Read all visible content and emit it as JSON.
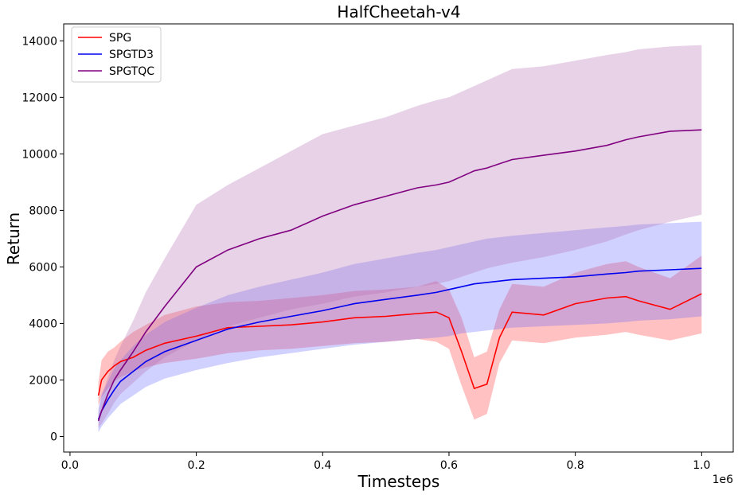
{
  "chart_data": {
    "type": "line",
    "title": "HalfCheetah-v4",
    "xlabel": "Timesteps",
    "ylabel": "Return",
    "x_offset_label": "1e6",
    "xlim": [
      -0.01,
      1.05
    ],
    "ylim": [
      -550,
      14600
    ],
    "xticks": [
      0.0,
      0.2,
      0.4,
      0.6,
      0.8,
      1.0
    ],
    "xtick_labels": [
      "0.0",
      "0.2",
      "0.4",
      "0.6",
      "0.8",
      "1.0"
    ],
    "yticks": [
      0,
      2000,
      4000,
      6000,
      8000,
      10000,
      12000,
      14000
    ],
    "ytick_labels": [
      "0",
      "2000",
      "4000",
      "6000",
      "8000",
      "10000",
      "12000",
      "14000"
    ],
    "grid": false,
    "legend_position": "top-left",
    "x": [
      0.045,
      0.05,
      0.06,
      0.07,
      0.08,
      0.1,
      0.12,
      0.15,
      0.2,
      0.25,
      0.3,
      0.35,
      0.4,
      0.45,
      0.5,
      0.55,
      0.58,
      0.6,
      0.62,
      0.64,
      0.66,
      0.68,
      0.7,
      0.75,
      0.8,
      0.85,
      0.88,
      0.9,
      0.95,
      1.0
    ],
    "series": [
      {
        "name": "SPG",
        "color": "#ff0000",
        "fill_color": "#ff3333",
        "values": [
          1450,
          2000,
          2300,
          2500,
          2650,
          2800,
          3050,
          3300,
          3550,
          3850,
          3900,
          3950,
          4050,
          4200,
          4250,
          4350,
          4400,
          4200,
          3000,
          1700,
          1850,
          3500,
          4400,
          4300,
          4700,
          4900,
          4950,
          4800,
          4500,
          5050
        ],
        "lower": [
          1100,
          1400,
          1700,
          1950,
          2100,
          2300,
          2450,
          2600,
          2750,
          2950,
          3050,
          3100,
          3200,
          3300,
          3350,
          3450,
          3350,
          3100,
          1800,
          600,
          800,
          2600,
          3400,
          3300,
          3500,
          3600,
          3700,
          3600,
          3400,
          3650
        ],
        "upper": [
          1900,
          2700,
          3000,
          3150,
          3350,
          3700,
          3950,
          4300,
          4600,
          4750,
          4800,
          4900,
          5000,
          5150,
          5200,
          5300,
          5500,
          5200,
          4200,
          2800,
          3000,
          4500,
          5400,
          5300,
          5800,
          6100,
          6200,
          6000,
          5600,
          6400
        ]
      },
      {
        "name": "SPGTD3",
        "color": "#0000ee",
        "fill_color": "#6666ff",
        "values": [
          600,
          900,
          1300,
          1650,
          1950,
          2300,
          2650,
          3000,
          3400,
          3800,
          4050,
          4250,
          4450,
          4700,
          4850,
          5000,
          5100,
          5200,
          5300,
          5400,
          5450,
          5500,
          5550,
          5600,
          5650,
          5750,
          5800,
          5850,
          5900,
          5950
        ],
        "lower": [
          150,
          350,
          650,
          900,
          1150,
          1450,
          1750,
          2050,
          2350,
          2600,
          2800,
          2950,
          3100,
          3250,
          3350,
          3450,
          3500,
          3550,
          3650,
          3700,
          3750,
          3800,
          3850,
          3900,
          3950,
          4000,
          4050,
          4100,
          4150,
          4250
        ],
        "upper": [
          1000,
          1500,
          1950,
          2400,
          2700,
          3200,
          3600,
          4050,
          4550,
          5000,
          5300,
          5550,
          5800,
          6100,
          6300,
          6500,
          6600,
          6700,
          6800,
          6900,
          7000,
          7050,
          7100,
          7200,
          7300,
          7400,
          7450,
          7500,
          7550,
          7600
        ]
      },
      {
        "name": "SPGTQC",
        "color": "#800080",
        "fill_color": "#b06ab0",
        "values": [
          550,
          900,
          1500,
          2000,
          2350,
          3000,
          3700,
          4600,
          6000,
          6600,
          7000,
          7300,
          7800,
          8200,
          8500,
          8800,
          8900,
          9000,
          9200,
          9400,
          9500,
          9650,
          9800,
          9950,
          10100,
          10300,
          10500,
          10600,
          10800,
          10850
        ],
        "lower": [
          300,
          450,
          800,
          1200,
          1500,
          1900,
          2300,
          2800,
          3400,
          3900,
          4200,
          4500,
          4700,
          4950,
          5100,
          5300,
          5400,
          5500,
          5650,
          5800,
          5950,
          6050,
          6150,
          6350,
          6600,
          6900,
          7150,
          7300,
          7600,
          7850
        ],
        "upper": [
          850,
          1400,
          2100,
          2700,
          3200,
          4100,
          5100,
          6300,
          8200,
          8900,
          9500,
          10100,
          10700,
          11000,
          11300,
          11700,
          11900,
          12000,
          12200,
          12400,
          12600,
          12800,
          13000,
          13100,
          13300,
          13500,
          13600,
          13700,
          13800,
          13850
        ]
      }
    ]
  }
}
